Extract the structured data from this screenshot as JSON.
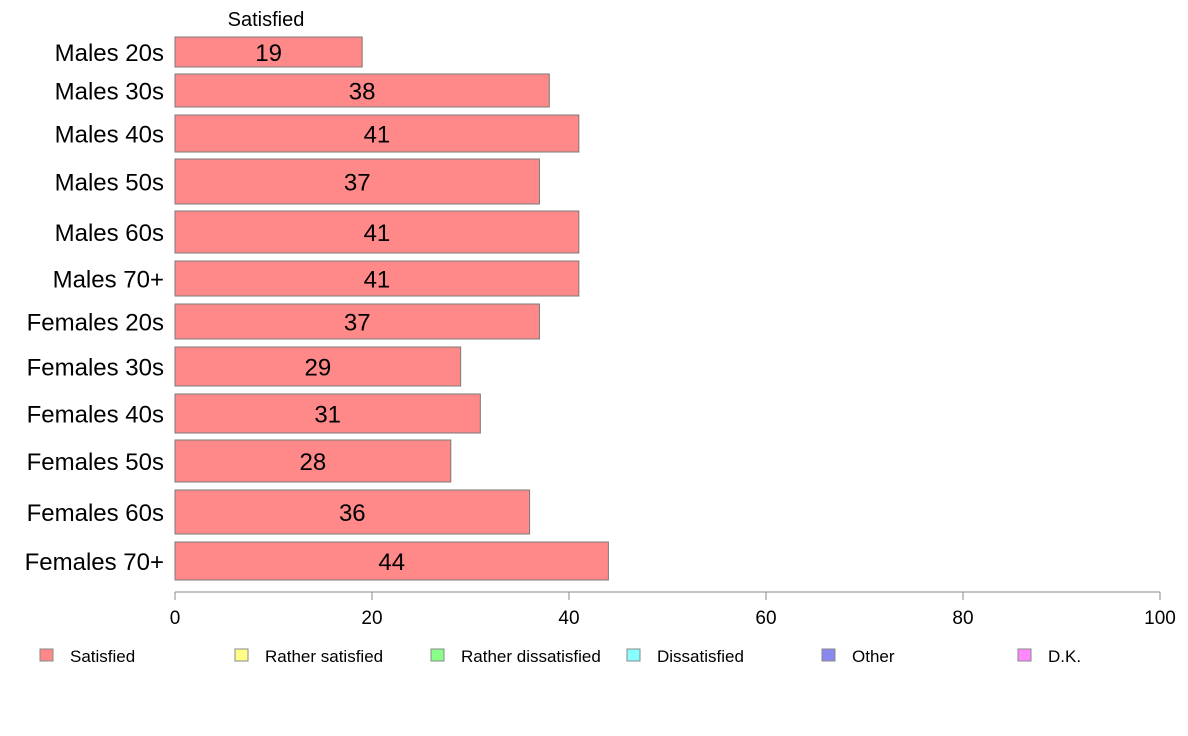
{
  "chart_data": {
    "type": "bar",
    "orientation": "horizontal",
    "stacked": true,
    "categories": [
      "Males 20s",
      "Males 30s",
      "Males 40s",
      "Males 50s",
      "Males 60s",
      "Males 70+",
      "Females 20s",
      "Females 30s",
      "Females 40s",
      "Females 50s",
      "Females 60s",
      "Females 70+"
    ],
    "series": [
      {
        "name": "Satisfied",
        "values": [
          19,
          38,
          41,
          37,
          41,
          41,
          37,
          29,
          31,
          28,
          36,
          44
        ],
        "color": "#ff8888"
      }
    ],
    "series_header": "Satisfied",
    "xlim": [
      0,
      100
    ],
    "xticks": [
      0,
      20,
      40,
      60,
      80,
      100
    ],
    "grid": false,
    "legend": {
      "placement": "bottom",
      "entries": [
        {
          "label": "Satisfied",
          "color": "#ff8888"
        },
        {
          "label": "Rather satisfied",
          "color": "#ffff88"
        },
        {
          "label": "Rather dissatisfied",
          "color": "#88ff88"
        },
        {
          "label": "Dissatisfied",
          "color": "#88ffff"
        },
        {
          "label": "Other",
          "color": "#8888ee"
        },
        {
          "label": "D.K.",
          "color": "#ff88ff"
        }
      ]
    }
  }
}
